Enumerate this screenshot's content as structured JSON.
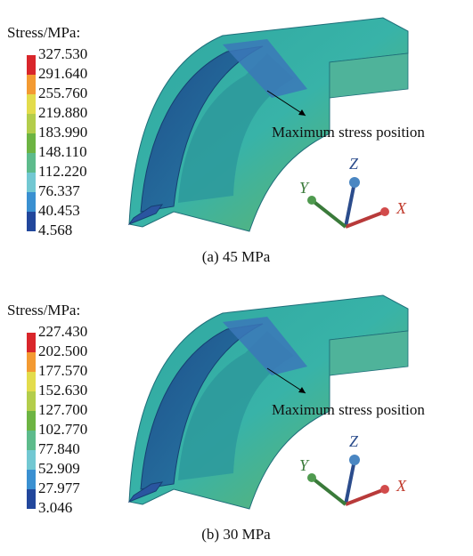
{
  "panels": [
    {
      "legend_title": "Stress/MPa:",
      "legend_labels": [
        "327.530",
        "291.640",
        "255.760",
        "219.880",
        "183.990",
        "148.110",
        "112.220",
        "76.337",
        "40.453",
        "4.568"
      ],
      "annotation": "Maximum stress position",
      "axes": {
        "x": "X",
        "y": "Y",
        "z": "Z"
      },
      "caption": "(a) 45 MPa"
    },
    {
      "legend_title": "Stress/MPa:",
      "legend_labels": [
        "227.430",
        "202.500",
        "177.570",
        "152.630",
        "127.700",
        "102.770",
        "77.840",
        "52.909",
        "27.977",
        "3.046"
      ],
      "annotation": "Maximum stress position",
      "axes": {
        "x": "X",
        "y": "Y",
        "z": "Z"
      },
      "caption": "(b) 30 MPa"
    }
  ]
}
